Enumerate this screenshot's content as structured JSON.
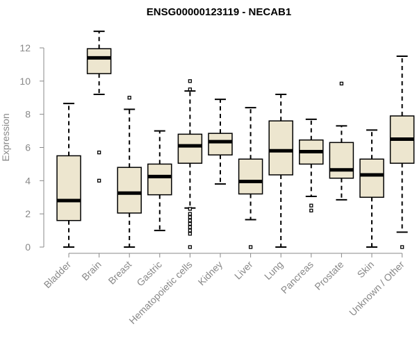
{
  "chart_data": {
    "type": "boxplot",
    "title": "ENSG00000123119 - NECAB1",
    "xlabel": "",
    "ylabel": "Expression",
    "ylim": [
      0,
      13
    ],
    "yticks": [
      0,
      2,
      4,
      6,
      8,
      10,
      12
    ],
    "colors": {
      "box_fill": "#ede6cf",
      "stroke": "#000000",
      "axis_text": "#888888"
    },
    "categories": [
      "Bladder",
      "Brain",
      "Breast",
      "Gastric",
      "Hematopoietic cells",
      "Kidney",
      "Liver",
      "Lung",
      "Pancreas",
      "Prostate",
      "Skin",
      "Unknown / Other"
    ],
    "series": [
      {
        "name": "Bladder",
        "whisker_low": 0,
        "q1": 1.6,
        "median": 2.8,
        "q3": 5.5,
        "whisker_high": 8.65,
        "outliers": []
      },
      {
        "name": "Brain",
        "whisker_low": 9.2,
        "q1": 10.45,
        "median": 11.4,
        "q3": 11.95,
        "whisker_high": 13.0,
        "outliers": [
          5.7,
          4.0
        ]
      },
      {
        "name": "Breast",
        "whisker_low": 0,
        "q1": 2.05,
        "median": 3.25,
        "q3": 4.8,
        "whisker_high": 8.3,
        "outliers": [
          9.0
        ]
      },
      {
        "name": "Gastric",
        "whisker_low": 1.0,
        "q1": 3.15,
        "median": 4.25,
        "q3": 5.0,
        "whisker_high": 7.0,
        "outliers": []
      },
      {
        "name": "Hematopoietic cells",
        "whisker_low": 2.35,
        "q1": 5.05,
        "median": 6.1,
        "q3": 6.8,
        "whisker_high": 9.4,
        "outliers": [
          10.0,
          9.5,
          2.3,
          2.0,
          1.8,
          1.6,
          1.4,
          1.2,
          1.0,
          0.8,
          0.0
        ]
      },
      {
        "name": "Kidney",
        "whisker_low": 3.8,
        "q1": 5.55,
        "median": 6.35,
        "q3": 6.85,
        "whisker_high": 8.9,
        "outliers": []
      },
      {
        "name": "Liver",
        "whisker_low": 1.65,
        "q1": 3.2,
        "median": 3.95,
        "q3": 5.3,
        "whisker_high": 8.4,
        "outliers": [
          0.0
        ]
      },
      {
        "name": "Lung",
        "whisker_low": 0,
        "q1": 4.35,
        "median": 5.8,
        "q3": 7.6,
        "whisker_high": 9.2,
        "outliers": []
      },
      {
        "name": "Pancreas",
        "whisker_low": 3.05,
        "q1": 5.0,
        "median": 5.75,
        "q3": 6.45,
        "whisker_high": 7.7,
        "outliers": [
          2.5,
          2.2
        ]
      },
      {
        "name": "Prostate",
        "whisker_low": 2.85,
        "q1": 4.15,
        "median": 4.65,
        "q3": 6.3,
        "whisker_high": 7.3,
        "outliers": [
          9.85
        ]
      },
      {
        "name": "Skin",
        "whisker_low": 0,
        "q1": 3.0,
        "median": 4.35,
        "q3": 5.3,
        "whisker_high": 7.05,
        "outliers": []
      },
      {
        "name": "Unknown / Other",
        "whisker_low": 0.9,
        "q1": 5.05,
        "median": 6.5,
        "q3": 7.9,
        "whisker_high": 11.5,
        "outliers": [
          0.0
        ]
      }
    ]
  }
}
